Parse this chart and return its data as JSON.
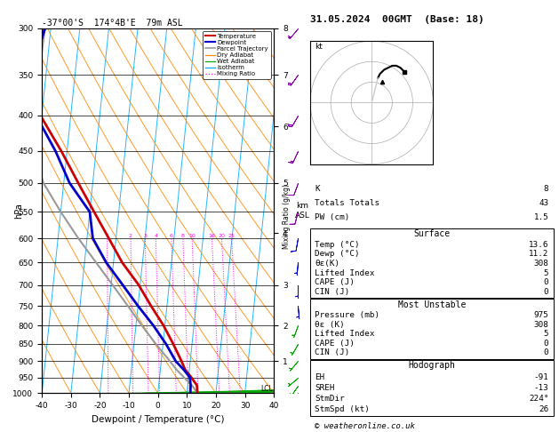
{
  "title_left": "-37°00'S  174°4B'E  79m ASL",
  "title_right": "31.05.2024  00GMT  (Base: 18)",
  "xlabel": "Dewpoint / Temperature (°C)",
  "ylabel_left": "hPa",
  "pressure_levels": [
    300,
    350,
    400,
    450,
    500,
    550,
    600,
    650,
    700,
    750,
    800,
    850,
    900,
    950,
    1000
  ],
  "temp_min": -40,
  "temp_max": 40,
  "skew": 25,
  "background_color": "#ffffff",
  "temp_profile": {
    "pressure": [
      1000,
      975,
      950,
      925,
      900,
      850,
      800,
      750,
      700,
      650,
      600,
      550,
      500,
      450,
      400,
      350,
      300
    ],
    "temp": [
      13.6,
      13.2,
      11.0,
      8.5,
      7.0,
      3.5,
      -0.5,
      -5.5,
      -10.5,
      -17.0,
      -22.5,
      -28.5,
      -35.0,
      -42.0,
      -50.5,
      -55.5,
      -52.0
    ],
    "color": "#cc0000",
    "linewidth": 2.0
  },
  "dewpoint_profile": {
    "pressure": [
      1000,
      975,
      950,
      925,
      900,
      850,
      800,
      750,
      700,
      650,
      600,
      550,
      500,
      450,
      400,
      350,
      300
    ],
    "temp": [
      11.2,
      11.0,
      10.5,
      8.0,
      5.0,
      1.0,
      -4.0,
      -10.0,
      -16.0,
      -22.5,
      -28.0,
      -30.0,
      -38.0,
      -44.0,
      -52.0,
      -55.5,
      -52.0
    ],
    "color": "#0000cc",
    "linewidth": 2.0
  },
  "parcel_trajectory": {
    "pressure": [
      1000,
      975,
      950,
      925,
      900,
      850,
      800,
      750,
      700,
      650,
      600,
      550,
      500,
      450,
      400,
      350,
      300
    ],
    "temp": [
      13.6,
      11.5,
      8.5,
      5.5,
      3.0,
      -2.5,
      -8.0,
      -13.5,
      -19.5,
      -26.0,
      -33.0,
      -40.0,
      -47.0,
      -51.5,
      -52.0,
      -52.5,
      -52.0
    ],
    "color": "#999999",
    "linewidth": 1.5
  },
  "lcl_pressure": 985,
  "mixing_ratio_lines": [
    1,
    2,
    3,
    4,
    6,
    8,
    10,
    16,
    20,
    25
  ],
  "mixing_ratio_color": "#ff00ff",
  "dry_adiabat_color": "#ff8800",
  "wet_adiabat_color": "#00aa00",
  "isotherm_color": "#00aaff",
  "km_ticks": [
    1,
    2,
    3,
    4,
    5,
    6,
    7,
    8
  ],
  "km_pressures": [
    900,
    800,
    700,
    590,
    500,
    415,
    350,
    300
  ],
  "wind_barbs": {
    "pressures": [
      300,
      350,
      400,
      450,
      500,
      550,
      600,
      650,
      700,
      750,
      800,
      850,
      900,
      950,
      975,
      1000
    ],
    "speeds": [
      22,
      20,
      18,
      15,
      12,
      10,
      8,
      7,
      6,
      5,
      4,
      5,
      5,
      5,
      5,
      3
    ],
    "directions": [
      220,
      215,
      210,
      205,
      200,
      195,
      190,
      185,
      180,
      175,
      200,
      210,
      220,
      230,
      215,
      180
    ],
    "colors": [
      "#8800aa",
      "#8800aa",
      "#8800aa",
      "#8800aa",
      "#8800aa",
      "#8800aa",
      "#0000cc",
      "#0000cc",
      "#0000cc",
      "#0000cc",
      "#00aa00",
      "#00aa00",
      "#00aa00",
      "#00aa00",
      "#00aa00",
      "#00aa00"
    ]
  },
  "info_table": {
    "K": "8",
    "Totals Totals": "43",
    "PW (cm)": "1.5",
    "Surface_Temp": "13.6",
    "Surface_Dewp": "11.2",
    "Surface_theta_e": "308",
    "Surface_LI": "5",
    "Surface_CAPE": "0",
    "Surface_CIN": "0",
    "MU_Pressure": "975",
    "MU_theta_e": "308",
    "MU_LI": "5",
    "MU_CAPE": "0",
    "MU_CIN": "0",
    "EH": "-91",
    "SREH": "-13",
    "StmDir": "224°",
    "StmSpd": "26"
  },
  "hodo_u": [
    3,
    4,
    6,
    8,
    10,
    12,
    14,
    16
  ],
  "hodo_v": [
    12,
    14,
    16,
    17,
    18,
    18,
    17,
    15
  ],
  "hodo_storm_u": 5,
  "hodo_storm_v": 10
}
